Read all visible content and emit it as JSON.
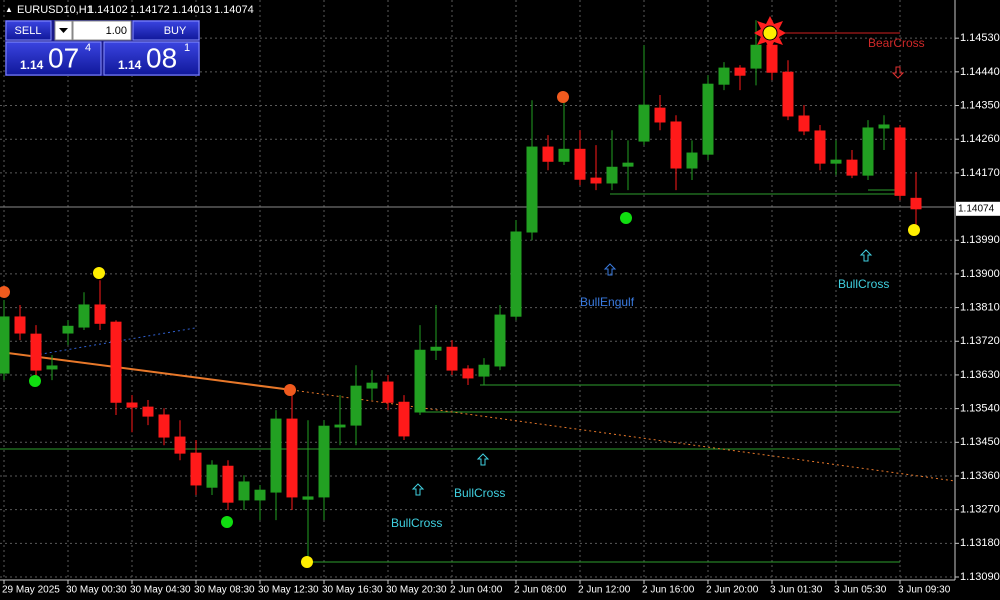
{
  "chart_data": {
    "type": "candlestick",
    "symbol": "EURUSD10,H1",
    "header_ohlc": [
      1.14102,
      1.14172,
      1.14013,
      1.14074
    ],
    "categories": [
      "29 May 2025",
      null,
      null,
      null,
      "30 May 00:30",
      null,
      null,
      null,
      "30 May 04:30",
      null,
      null,
      null,
      "30 May 08:30",
      null,
      null,
      null,
      "30 May 12:30",
      null,
      null,
      null,
      "30 May 16:30",
      null,
      null,
      null,
      "30 May 20:30",
      null,
      null,
      null,
      "2 Jun 04:00",
      null,
      null,
      null,
      "2 Jun 08:00",
      null,
      null,
      null,
      "2 Jun 12:00",
      null,
      null,
      null,
      "2 Jun 16:00",
      null,
      null,
      null,
      "2 Jun 20:00",
      null,
      null,
      null,
      "3 Jun 01:30",
      null,
      null,
      null,
      "3 Jun 05:30",
      null,
      null,
      null,
      "3 Jun 09:30",
      null
    ],
    "open": [
      1.13635,
      1.13785,
      1.13739,
      1.13646,
      1.13742,
      1.13758,
      1.13817,
      1.13771,
      1.13555,
      1.13544,
      1.13523,
      1.13464,
      1.13421,
      1.1333,
      1.13386,
      1.13296,
      1.13296,
      1.13317,
      1.13512,
      1.13298,
      1.13304,
      1.13491,
      1.13496,
      1.13595,
      1.13611,
      1.13557,
      1.13531,
      1.13696,
      1.13704,
      1.13646,
      1.13627,
      1.13654,
      1.13787,
      1.14012,
      1.14239,
      1.14201,
      1.14233,
      1.14156,
      1.14143,
      1.14188,
      1.14255,
      1.14343,
      1.14306,
      1.14183,
      1.1422,
      1.14407,
      1.1445,
      1.1445,
      1.14511,
      1.14439,
      1.14322,
      1.14282,
      1.14196,
      1.14204,
      1.14164,
      1.1429,
      1.1429,
      1.14102
    ],
    "high": [
      1.1383,
      1.13817,
      1.13763,
      1.13683,
      1.13776,
      1.13851,
      1.13883,
      1.13776,
      1.13576,
      1.13563,
      1.13541,
      1.13509,
      1.13456,
      1.13402,
      1.13402,
      1.13362,
      1.13336,
      1.13536,
      1.13584,
      1.13509,
      1.13509,
      1.13576,
      1.13656,
      1.13643,
      1.1363,
      1.13576,
      1.13763,
      1.13817,
      1.13723,
      1.13656,
      1.13675,
      1.13817,
      1.14044,
      1.14364,
      1.14271,
      1.14364,
      1.14284,
      1.14244,
      1.14284,
      1.14257,
      1.14511,
      1.14378,
      1.14324,
      1.14257,
      1.14431,
      1.14466,
      1.14458,
      1.14578,
      1.14565,
      1.14471,
      1.14351,
      1.14298,
      1.14257,
      1.14231,
      1.14311,
      1.14324,
      1.14298,
      1.14172
    ],
    "low": [
      1.13616,
      1.13723,
      1.1363,
      1.13616,
      1.1371,
      1.1375,
      1.1375,
      1.13523,
      1.13477,
      1.13496,
      1.13442,
      1.13402,
      1.13309,
      1.13309,
      1.13269,
      1.13269,
      1.13242,
      1.13242,
      1.13269,
      1.13135,
      1.13242,
      1.13442,
      1.13442,
      1.13563,
      1.13536,
      1.13456,
      1.13523,
      1.1367,
      1.1363,
      1.13603,
      1.13603,
      1.13643,
      1.13776,
      1.1399,
      1.14177,
      1.14191,
      1.14137,
      1.14124,
      1.14124,
      1.14124,
      1.14244,
      1.14284,
      1.14124,
      1.14151,
      1.14204,
      1.14391,
      1.14391,
      1.14404,
      1.14418,
      1.14311,
      1.14271,
      1.14177,
      1.14164,
      1.14156,
      1.14151,
      1.14231,
      1.14097,
      1.14013
    ],
    "close": [
      1.13785,
      1.13742,
      1.13643,
      1.13654,
      1.1376,
      1.13817,
      1.13768,
      1.13557,
      1.13544,
      1.1352,
      1.13464,
      1.13421,
      1.13336,
      1.13389,
      1.1329,
      1.13344,
      1.13322,
      1.13512,
      1.13304,
      1.13304,
      1.13493,
      1.13496,
      1.136,
      1.13608,
      1.13557,
      1.13467,
      1.13696,
      1.13704,
      1.13643,
      1.13622,
      1.13656,
      1.1379,
      1.14012,
      1.14239,
      1.14201,
      1.14233,
      1.14153,
      1.14143,
      1.14185,
      1.14196,
      1.14351,
      1.14306,
      1.14183,
      1.14223,
      1.14407,
      1.1445,
      1.14431,
      1.14511,
      1.14439,
      1.14322,
      1.14282,
      1.14196,
      1.14204,
      1.14164,
      1.1429,
      1.14298,
      1.1411,
      1.14074
    ],
    "up_color": "#22a022",
    "down_color": "#ff1a1a",
    "ylim": [
      1.13082,
      1.14632
    ],
    "yticks": [
      {
        "value": 1.1453,
        "label": "1.14530"
      },
      {
        "value": 1.1444,
        "label": "1.14440"
      },
      {
        "value": 1.1435,
        "label": "1.14350"
      },
      {
        "value": 1.1426,
        "label": "1.14260"
      },
      {
        "value": 1.1417,
        "label": "1.14170"
      },
      {
        "value": 1.1399,
        "label": "1.13990"
      },
      {
        "value": 1.139,
        "label": "1.13900"
      },
      {
        "value": 1.1381,
        "label": "1.13810"
      },
      {
        "value": 1.1372,
        "label": "1.13720"
      },
      {
        "value": 1.1363,
        "label": "1.13630"
      },
      {
        "value": 1.1354,
        "label": "1.13540"
      },
      {
        "value": 1.1345,
        "label": "1.13450"
      },
      {
        "value": 1.1336,
        "label": "1.13360"
      },
      {
        "value": 1.1327,
        "label": "1.13270"
      },
      {
        "value": 1.1318,
        "label": "1.13180"
      },
      {
        "value": 1.1309,
        "label": "1.13090"
      }
    ],
    "current_price": 1.14074,
    "grid": true,
    "annotations": [
      "BearCross",
      "BullEngulf",
      "BullCross",
      "BullCross",
      "BullCross"
    ]
  },
  "trade_panel": {
    "sell": "SELL",
    "buy": "BUY",
    "lot": "1.00",
    "sell_price": [
      "1.14",
      "07",
      "4"
    ],
    "buy_price": [
      "1.14",
      "08",
      "1"
    ]
  }
}
